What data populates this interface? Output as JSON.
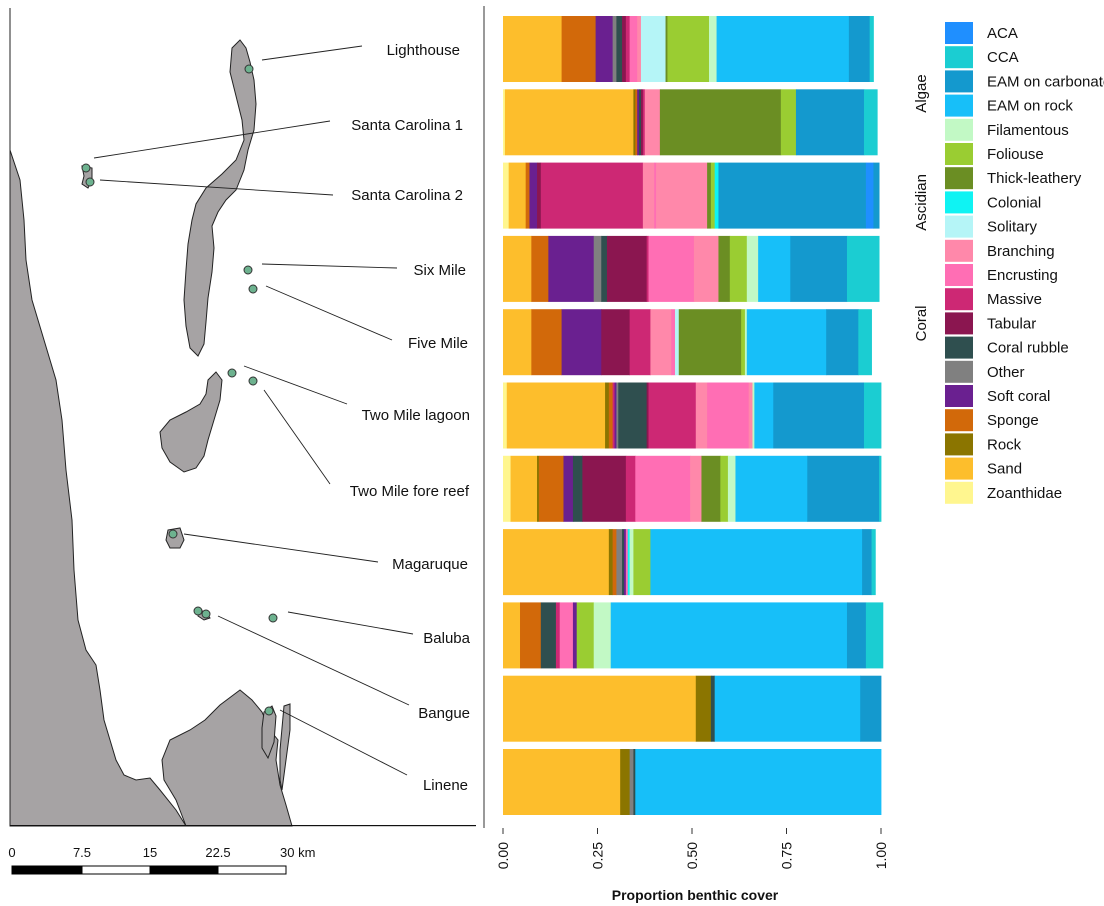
{
  "map": {
    "land_color": "#a6a3a4",
    "site_color": "#6db28f",
    "scale": {
      "labels": [
        "0",
        "7.5",
        "15",
        "22.5",
        "30 km"
      ]
    }
  },
  "chart_data": {
    "type": "bar",
    "orientation": "horizontal",
    "stacked": true,
    "xlabel": "Proportion benthic cover",
    "xlim": [
      0,
      1
    ],
    "xticks": [
      "0.00",
      "0.25",
      "0.50",
      "0.75",
      "1.00"
    ],
    "sites": [
      "Lighthouse",
      "Santa Carolina 1",
      "Santa Carolina 2",
      "Six Mile",
      "Five Mile",
      "Two Mile lagoon",
      "Two Mile fore reef",
      "Magaruque",
      "Baluba",
      "Bangue",
      "Linene"
    ],
    "legend_position": "right",
    "legend_groups": [
      {
        "label": "Algae",
        "from": "ACA",
        "to": "Foliouse"
      },
      {
        "label": "Ascidian",
        "from": "Thick-leathery",
        "to": "Solitary"
      },
      {
        "label": "Coral",
        "from": "Branching",
        "to": "Soft coral"
      }
    ],
    "categories": [
      {
        "name": "ACA",
        "color": "#1f8fff"
      },
      {
        "name": "CCA",
        "color": "#1bcdd2"
      },
      {
        "name": "EAM on carbonate",
        "color": "#1499ce"
      },
      {
        "name": "EAM on rock",
        "color": "#17bff9"
      },
      {
        "name": "Filamentous",
        "color": "#c2f9c5"
      },
      {
        "name": "Foliouse",
        "color": "#9acd32"
      },
      {
        "name": "Thick-leathery",
        "color": "#6b8e23"
      },
      {
        "name": "Colonial",
        "color": "#0ff3f3"
      },
      {
        "name": "Solitary",
        "color": "#b5f5f7"
      },
      {
        "name": "Branching",
        "color": "#ff88aa"
      },
      {
        "name": "Encrusting",
        "color": "#ff6eb4"
      },
      {
        "name": "Massive",
        "color": "#cd2874"
      },
      {
        "name": "Tabular",
        "color": "#8b1650"
      },
      {
        "name": "Coral rubble",
        "color": "#2f4f4f"
      },
      {
        "name": "Other",
        "color": "#808080"
      },
      {
        "name": "Soft coral",
        "color": "#6a2090"
      },
      {
        "name": "Sponge",
        "color": "#d2690a"
      },
      {
        "name": "Rock",
        "color": "#8b7500"
      },
      {
        "name": "Sand",
        "color": "#fdbe2c"
      },
      {
        "name": "Zoanthidae",
        "color": "#fff68f"
      }
    ],
    "bars": [
      {
        "site": "Lighthouse",
        "segments": [
          [
            "Sand",
            0.155
          ],
          [
            "Sponge",
            0.09
          ],
          [
            "Soft coral",
            0.045
          ],
          [
            "Other",
            0.01
          ],
          [
            "Coral rubble",
            0.015
          ],
          [
            "Tabular",
            0.01
          ],
          [
            "Massive",
            0.01
          ],
          [
            "Encrusting",
            0.02
          ],
          [
            "Branching",
            0.01
          ],
          [
            "Solitary",
            0.065
          ],
          [
            "Thick-leathery",
            0.005
          ],
          [
            "Foliouse",
            0.11
          ],
          [
            "Filamentous",
            0.02
          ],
          [
            "EAM on rock",
            0.35
          ],
          [
            "EAM on carbonate",
            0.055
          ],
          [
            "CCA",
            0.01
          ]
        ]
      },
      {
        "site": "Santa Carolina 1",
        "segments": [
          [
            "Zoanthidae",
            0.005
          ],
          [
            "Sand",
            0.34
          ],
          [
            "Rock",
            0.005
          ],
          [
            "Sponge",
            0.005
          ],
          [
            "Soft coral",
            0.005
          ],
          [
            "Coral rubble",
            0.005
          ],
          [
            "Tabular",
            0.005
          ],
          [
            "Massive",
            0.005
          ],
          [
            "Branching",
            0.04
          ],
          [
            "Thick-leathery",
            0.32
          ],
          [
            "Foliouse",
            0.04
          ],
          [
            "EAM on carbonate",
            0.18
          ],
          [
            "CCA",
            0.035
          ]
        ]
      },
      {
        "site": "Santa Carolina 2",
        "segments": [
          [
            "Zoanthidae",
            0.015
          ],
          [
            "Sand",
            0.045
          ],
          [
            "Sponge",
            0.01
          ],
          [
            "Soft coral",
            0.02
          ],
          [
            "Tabular",
            0.01
          ],
          [
            "Massive",
            0.27
          ],
          [
            "Branching",
            0.03
          ],
          [
            "Encrusting",
            0.005
          ],
          [
            "Branching",
            0.135
          ],
          [
            "Thick-leathery",
            0.01
          ],
          [
            "Foliouse",
            0.01
          ],
          [
            "Colonial",
            0.01
          ],
          [
            "EAM on carbonate",
            0.39
          ],
          [
            "ACA",
            0.02
          ],
          [
            "EAM on carbonate",
            0.015
          ]
        ]
      },
      {
        "site": "Six Mile",
        "segments": [
          [
            "Sand",
            0.075
          ],
          [
            "Sponge",
            0.045
          ],
          [
            "Soft coral",
            0.12
          ],
          [
            "Other",
            0.02
          ],
          [
            "Coral rubble",
            0.015
          ],
          [
            "Tabular",
            0.105
          ],
          [
            "Massive",
            0.005
          ],
          [
            "Encrusting",
            0.12
          ],
          [
            "Branching",
            0.065
          ],
          [
            "Thick-leathery",
            0.03
          ],
          [
            "Foliouse",
            0.045
          ],
          [
            "Filamentous",
            0.03
          ],
          [
            "EAM on rock",
            0.085
          ],
          [
            "EAM on carbonate",
            0.15
          ],
          [
            "CCA",
            0.085
          ]
        ]
      },
      {
        "site": "Five Mile",
        "segments": [
          [
            "Sand",
            0.075
          ],
          [
            "Sponge",
            0.08
          ],
          [
            "Soft coral",
            0.105
          ],
          [
            "Tabular",
            0.075
          ],
          [
            "Massive",
            0.055
          ],
          [
            "Branching",
            0.055
          ],
          [
            "Encrusting",
            0.01
          ],
          [
            "Solitary",
            0.01
          ],
          [
            "Thick-leathery",
            0.165
          ],
          [
            "Foliouse",
            0.01
          ],
          [
            "Filamentous",
            0.005
          ],
          [
            "EAM on rock",
            0.21
          ],
          [
            "EAM on carbonate",
            0.085
          ],
          [
            "CCA",
            0.035
          ]
        ]
      },
      {
        "site": "Two Mile lagoon",
        "segments": [
          [
            "Zoanthidae",
            0.01
          ],
          [
            "Sand",
            0.26
          ],
          [
            "Rock",
            0.01
          ],
          [
            "Sponge",
            0.01
          ],
          [
            "Massive",
            0.005
          ],
          [
            "Soft coral",
            0.005
          ],
          [
            "Other",
            0.005
          ],
          [
            "Coral rubble",
            0.075
          ],
          [
            "Tabular",
            0.005
          ],
          [
            "Massive",
            0.125
          ],
          [
            "Branching",
            0.03
          ],
          [
            "Encrusting",
            0.11
          ],
          [
            "Branching",
            0.01
          ],
          [
            "Filamentous",
            0.005
          ],
          [
            "EAM on rock",
            0.05
          ],
          [
            "EAM on carbonate",
            0.24
          ],
          [
            "CCA",
            0.045
          ]
        ]
      },
      {
        "site": "Two Mile fore reef",
        "segments": [
          [
            "Zoanthidae",
            0.02
          ],
          [
            "Sand",
            0.07
          ],
          [
            "Rock",
            0.005
          ],
          [
            "Sponge",
            0.065
          ],
          [
            "Soft coral",
            0.025
          ],
          [
            "Coral rubble",
            0.025
          ],
          [
            "Tabular",
            0.115
          ],
          [
            "Massive",
            0.025
          ],
          [
            "Encrusting",
            0.145
          ],
          [
            "Branching",
            0.03
          ],
          [
            "Thick-leathery",
            0.05
          ],
          [
            "Foliouse",
            0.02
          ],
          [
            "Filamentous",
            0.02
          ],
          [
            "EAM on rock",
            0.19
          ],
          [
            "EAM on carbonate",
            0.19
          ],
          [
            "CCA",
            0.005
          ]
        ]
      },
      {
        "site": "Magaruque",
        "segments": [
          [
            "Sand",
            0.28
          ],
          [
            "Rock",
            0.01
          ],
          [
            "Sponge",
            0.01
          ],
          [
            "Other",
            0.015
          ],
          [
            "Coral rubble",
            0.005
          ],
          [
            "Soft coral",
            0.005
          ],
          [
            "Encrusting",
            0.005
          ],
          [
            "Colonial",
            0.005
          ],
          [
            "Filamentous",
            0.01
          ],
          [
            "Foliouse",
            0.045
          ],
          [
            "EAM on rock",
            0.56
          ],
          [
            "EAM on carbonate",
            0.025
          ],
          [
            "CCA",
            0.01
          ]
        ]
      },
      {
        "site": "Baluba",
        "segments": [
          [
            "Sand",
            0.045
          ],
          [
            "Sponge",
            0.055
          ],
          [
            "Coral rubble",
            0.04
          ],
          [
            "Massive",
            0.01
          ],
          [
            "Encrusting",
            0.035
          ],
          [
            "Soft coral",
            0.01
          ],
          [
            "Foliouse",
            0.045
          ],
          [
            "Filamentous",
            0.045
          ],
          [
            "EAM on rock",
            0.625
          ],
          [
            "EAM on carbonate",
            0.05
          ],
          [
            "CCA",
            0.045
          ]
        ]
      },
      {
        "site": "Bangue",
        "segments": [
          [
            "Sand",
            0.51
          ],
          [
            "Rock",
            0.04
          ],
          [
            "Coral rubble",
            0.01
          ],
          [
            "EAM on rock",
            0.385
          ],
          [
            "EAM on carbonate",
            0.055
          ]
        ]
      },
      {
        "site": "Linene",
        "segments": [
          [
            "Sand",
            0.31
          ],
          [
            "Rock",
            0.025
          ],
          [
            "Other",
            0.01
          ],
          [
            "Coral rubble",
            0.005
          ],
          [
            "EAM on rock",
            0.65
          ]
        ]
      }
    ]
  }
}
